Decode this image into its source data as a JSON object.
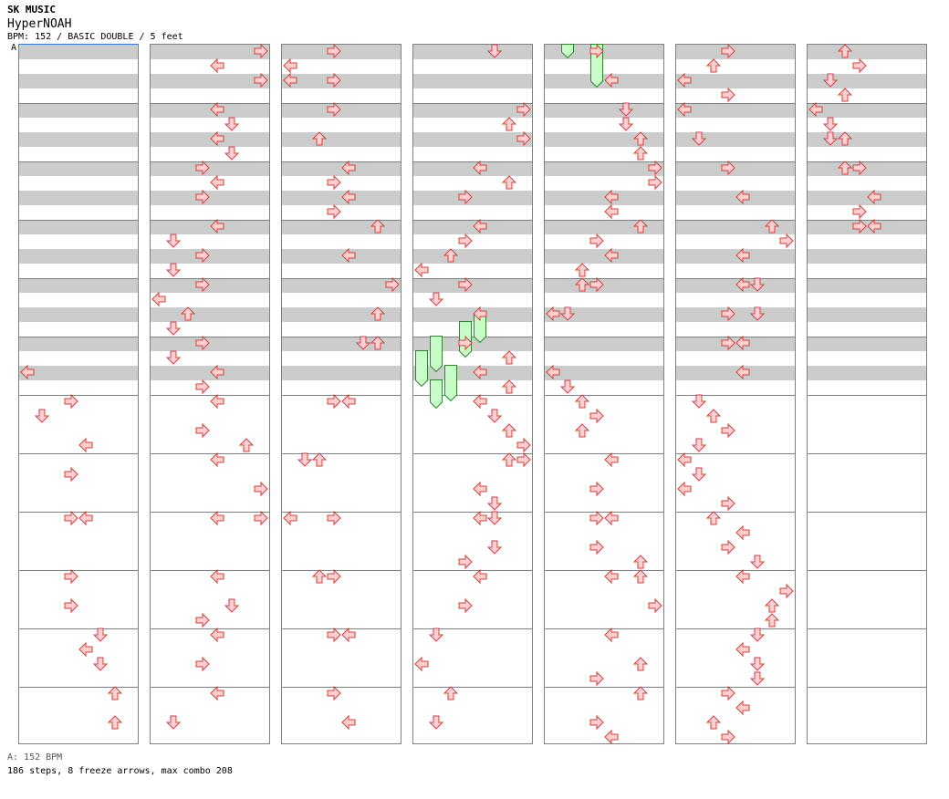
{
  "header": {
    "artist": "SK MUSIC",
    "title": "HyperNOAH",
    "info": "BPM: 152 / BASIC DOUBLE / 5 feet",
    "marker": "A"
  },
  "footer": {
    "bpm_line": "A: 152 BPM",
    "stats": "186 steps, 8 freeze arrows, max combo 208"
  },
  "colors": {
    "arrow_fill": "#fcd0d0",
    "arrow_stroke": "#d04040",
    "freeze_fill": "#c8fcc8",
    "freeze_stroke": "#2a8a2a",
    "band": "#cccccc",
    "border": "#808080"
  },
  "chart_data": {
    "type": "step-chart",
    "lanes": [
      "left",
      "down",
      "up",
      "right",
      "left2",
      "down2",
      "up2",
      "right2"
    ],
    "columns": 7,
    "rows_per_column": 48,
    "notes": [
      [
        0,
        22,
        0
      ],
      [
        0,
        24,
        3
      ],
      [
        0,
        25,
        1
      ],
      [
        0,
        27,
        4
      ],
      [
        0,
        29,
        3
      ],
      [
        0,
        32,
        3
      ],
      [
        0,
        32,
        4
      ],
      [
        0,
        36,
        3
      ],
      [
        0,
        38,
        3
      ],
      [
        0,
        40,
        5
      ],
      [
        0,
        41,
        4
      ],
      [
        0,
        42,
        5
      ],
      [
        0,
        44,
        6
      ],
      [
        0,
        46,
        6
      ],
      [
        1,
        0,
        7
      ],
      [
        1,
        1,
        4
      ],
      [
        1,
        2,
        7
      ],
      [
        1,
        4,
        4
      ],
      [
        1,
        5,
        5
      ],
      [
        1,
        6,
        4
      ],
      [
        1,
        7,
        5
      ],
      [
        1,
        8,
        3
      ],
      [
        1,
        9,
        4
      ],
      [
        1,
        10,
        3
      ],
      [
        1,
        12,
        4
      ],
      [
        1,
        13,
        1
      ],
      [
        1,
        14,
        3
      ],
      [
        1,
        15,
        1
      ],
      [
        1,
        16,
        3
      ],
      [
        1,
        17,
        0
      ],
      [
        1,
        18,
        2
      ],
      [
        1,
        19,
        1
      ],
      [
        1,
        20,
        3
      ],
      [
        1,
        21,
        1
      ],
      [
        1,
        22,
        4
      ],
      [
        1,
        23,
        3
      ],
      [
        1,
        24,
        4
      ],
      [
        1,
        26,
        3
      ],
      [
        1,
        27,
        6
      ],
      [
        1,
        28,
        4
      ],
      [
        1,
        30,
        7
      ],
      [
        1,
        32,
        4
      ],
      [
        1,
        32,
        7
      ],
      [
        1,
        36,
        4
      ],
      [
        1,
        38,
        5
      ],
      [
        1,
        39,
        3
      ],
      [
        1,
        40,
        4
      ],
      [
        1,
        42,
        3
      ],
      [
        1,
        44,
        4
      ],
      [
        1,
        46,
        1
      ],
      [
        2,
        0,
        3
      ],
      [
        2,
        1,
        0
      ],
      [
        2,
        2,
        0
      ],
      [
        2,
        2,
        3
      ],
      [
        2,
        4,
        3
      ],
      [
        2,
        6,
        2
      ],
      [
        2,
        8,
        4
      ],
      [
        2,
        9,
        3
      ],
      [
        2,
        10,
        4
      ],
      [
        2,
        11,
        3
      ],
      [
        2,
        12,
        6
      ],
      [
        2,
        14,
        4
      ],
      [
        2,
        16,
        7
      ],
      [
        2,
        18,
        6
      ],
      [
        2,
        20,
        5
      ],
      [
        2,
        20,
        6
      ],
      [
        2,
        24,
        3
      ],
      [
        2,
        24,
        4
      ],
      [
        2,
        28,
        1
      ],
      [
        2,
        28,
        2
      ],
      [
        2,
        32,
        0
      ],
      [
        2,
        32,
        3
      ],
      [
        2,
        36,
        2
      ],
      [
        2,
        36,
        3
      ],
      [
        2,
        40,
        3
      ],
      [
        2,
        40,
        4
      ],
      [
        2,
        44,
        3
      ],
      [
        2,
        46,
        4
      ],
      [
        3,
        0,
        5
      ],
      [
        3,
        4,
        7
      ],
      [
        3,
        5,
        6
      ],
      [
        3,
        6,
        7
      ],
      [
        3,
        8,
        4
      ],
      [
        3,
        9,
        6
      ],
      [
        3,
        10,
        3
      ],
      [
        3,
        12,
        4
      ],
      [
        3,
        13,
        3
      ],
      [
        3,
        14,
        2
      ],
      [
        3,
        15,
        0
      ],
      [
        3,
        16,
        3
      ],
      [
        3,
        17,
        1
      ],
      [
        3,
        18,
        4
      ],
      [
        3,
        20,
        3
      ],
      [
        3,
        21,
        6
      ],
      [
        3,
        22,
        4
      ],
      [
        3,
        23,
        6
      ],
      [
        3,
        24,
        4
      ],
      [
        3,
        25,
        5
      ],
      [
        3,
        26,
        6
      ],
      [
        3,
        27,
        7
      ],
      [
        3,
        28,
        6
      ],
      [
        3,
        28,
        7
      ],
      [
        3,
        30,
        4
      ],
      [
        3,
        31,
        5
      ],
      [
        3,
        32,
        4
      ],
      [
        3,
        32,
        5
      ],
      [
        3,
        34,
        5
      ],
      [
        3,
        35,
        3
      ],
      [
        3,
        36,
        4
      ],
      [
        3,
        38,
        3
      ],
      [
        3,
        40,
        1
      ],
      [
        3,
        42,
        0
      ],
      [
        3,
        44,
        2
      ],
      [
        3,
        46,
        1
      ],
      [
        4,
        0,
        3
      ],
      [
        4,
        2,
        4
      ],
      [
        4,
        4,
        5
      ],
      [
        4,
        5,
        5
      ],
      [
        4,
        6,
        6
      ],
      [
        4,
        7,
        6
      ],
      [
        4,
        8,
        7
      ],
      [
        4,
        9,
        7
      ],
      [
        4,
        10,
        4
      ],
      [
        4,
        11,
        4
      ],
      [
        4,
        12,
        6
      ],
      [
        4,
        13,
        3
      ],
      [
        4,
        14,
        4
      ],
      [
        4,
        15,
        2
      ],
      [
        4,
        16,
        2
      ],
      [
        4,
        16,
        3
      ],
      [
        4,
        18,
        0
      ],
      [
        4,
        18,
        1
      ],
      [
        4,
        22,
        0
      ],
      [
        4,
        23,
        1
      ],
      [
        4,
        24,
        2
      ],
      [
        4,
        25,
        3
      ],
      [
        4,
        26,
        2
      ],
      [
        4,
        28,
        4
      ],
      [
        4,
        30,
        3
      ],
      [
        4,
        32,
        3
      ],
      [
        4,
        32,
        4
      ],
      [
        4,
        34,
        3
      ],
      [
        4,
        35,
        6
      ],
      [
        4,
        36,
        4
      ],
      [
        4,
        36,
        6
      ],
      [
        4,
        38,
        7
      ],
      [
        4,
        40,
        4
      ],
      [
        4,
        42,
        6
      ],
      [
        4,
        43,
        3
      ],
      [
        4,
        44,
        6
      ],
      [
        4,
        46,
        3
      ],
      [
        4,
        47,
        4
      ],
      [
        5,
        0,
        3
      ],
      [
        5,
        1,
        2
      ],
      [
        5,
        2,
        0
      ],
      [
        5,
        3,
        3
      ],
      [
        5,
        4,
        0
      ],
      [
        5,
        6,
        1
      ],
      [
        5,
        8,
        3
      ],
      [
        5,
        10,
        4
      ],
      [
        5,
        12,
        6
      ],
      [
        5,
        13,
        7
      ],
      [
        5,
        14,
        4
      ],
      [
        5,
        16,
        4
      ],
      [
        5,
        16,
        5
      ],
      [
        5,
        18,
        3
      ],
      [
        5,
        18,
        5
      ],
      [
        5,
        20,
        3
      ],
      [
        5,
        20,
        4
      ],
      [
        5,
        22,
        4
      ],
      [
        5,
        24,
        1
      ],
      [
        5,
        25,
        2
      ],
      [
        5,
        26,
        3
      ],
      [
        5,
        27,
        1
      ],
      [
        5,
        28,
        0
      ],
      [
        5,
        29,
        1
      ],
      [
        5,
        30,
        0
      ],
      [
        5,
        31,
        3
      ],
      [
        5,
        32,
        2
      ],
      [
        5,
        33,
        4
      ],
      [
        5,
        34,
        3
      ],
      [
        5,
        35,
        5
      ],
      [
        5,
        36,
        4
      ],
      [
        5,
        37,
        7
      ],
      [
        5,
        38,
        6
      ],
      [
        5,
        39,
        6
      ],
      [
        5,
        40,
        5
      ],
      [
        5,
        41,
        4
      ],
      [
        5,
        42,
        5
      ],
      [
        5,
        43,
        5
      ],
      [
        5,
        44,
        3
      ],
      [
        5,
        45,
        4
      ],
      [
        5,
        46,
        2
      ],
      [
        5,
        47,
        3
      ],
      [
        6,
        0,
        2
      ],
      [
        6,
        1,
        3
      ],
      [
        6,
        2,
        1
      ],
      [
        6,
        3,
        2
      ],
      [
        6,
        4,
        0
      ],
      [
        6,
        5,
        1
      ],
      [
        6,
        6,
        1
      ],
      [
        6,
        6,
        2
      ],
      [
        6,
        8,
        2
      ],
      [
        6,
        8,
        3
      ],
      [
        6,
        10,
        4
      ],
      [
        6,
        11,
        3
      ],
      [
        6,
        12,
        3
      ],
      [
        6,
        12,
        4
      ]
    ],
    "freezes": [
      [
        3,
        37,
        4,
        39
      ],
      [
        3,
        38,
        3,
        41
      ],
      [
        3,
        40,
        1,
        43
      ],
      [
        3,
        42,
        0,
        45
      ],
      [
        3,
        44,
        2,
        47
      ],
      [
        3,
        46,
        1,
        48
      ],
      [
        4,
        -1,
        1,
        0
      ],
      [
        4,
        0,
        3,
        4
      ]
    ]
  }
}
